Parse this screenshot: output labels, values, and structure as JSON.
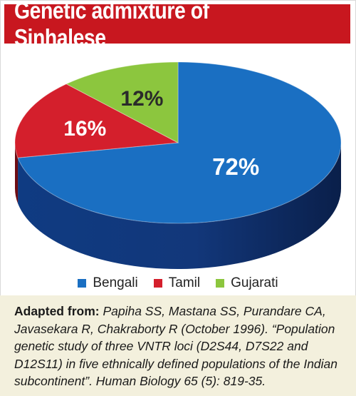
{
  "chart_data": {
    "type": "pie",
    "title": "Genetic admixture of Sinhalese",
    "slices": [
      {
        "label": "Bengali",
        "value": 72,
        "display": "72%",
        "color": "#1a6fc2",
        "dark": "#0d2a5e"
      },
      {
        "label": "Tamil",
        "value": 16,
        "display": "16%",
        "color": "#d41f2c",
        "dark": "#6e0d14"
      },
      {
        "label": "Gujarati",
        "value": 12,
        "display": "12%",
        "color": "#8cc63e",
        "dark": "#3f6b17"
      }
    ],
    "legend_position": "bottom"
  },
  "caption": {
    "lead": "Adapted from:",
    "citation": "Papiha SS, Mastana SS, Purandare CA, Javasekara R, Chakraborty R (October 1996). “Population genetic study of three VNTR loci (D2S44, D7S22 and D12S11) in five ethnically defined populations of the Indian subcontinent”. Human Biology 65 (5): 819-35."
  }
}
